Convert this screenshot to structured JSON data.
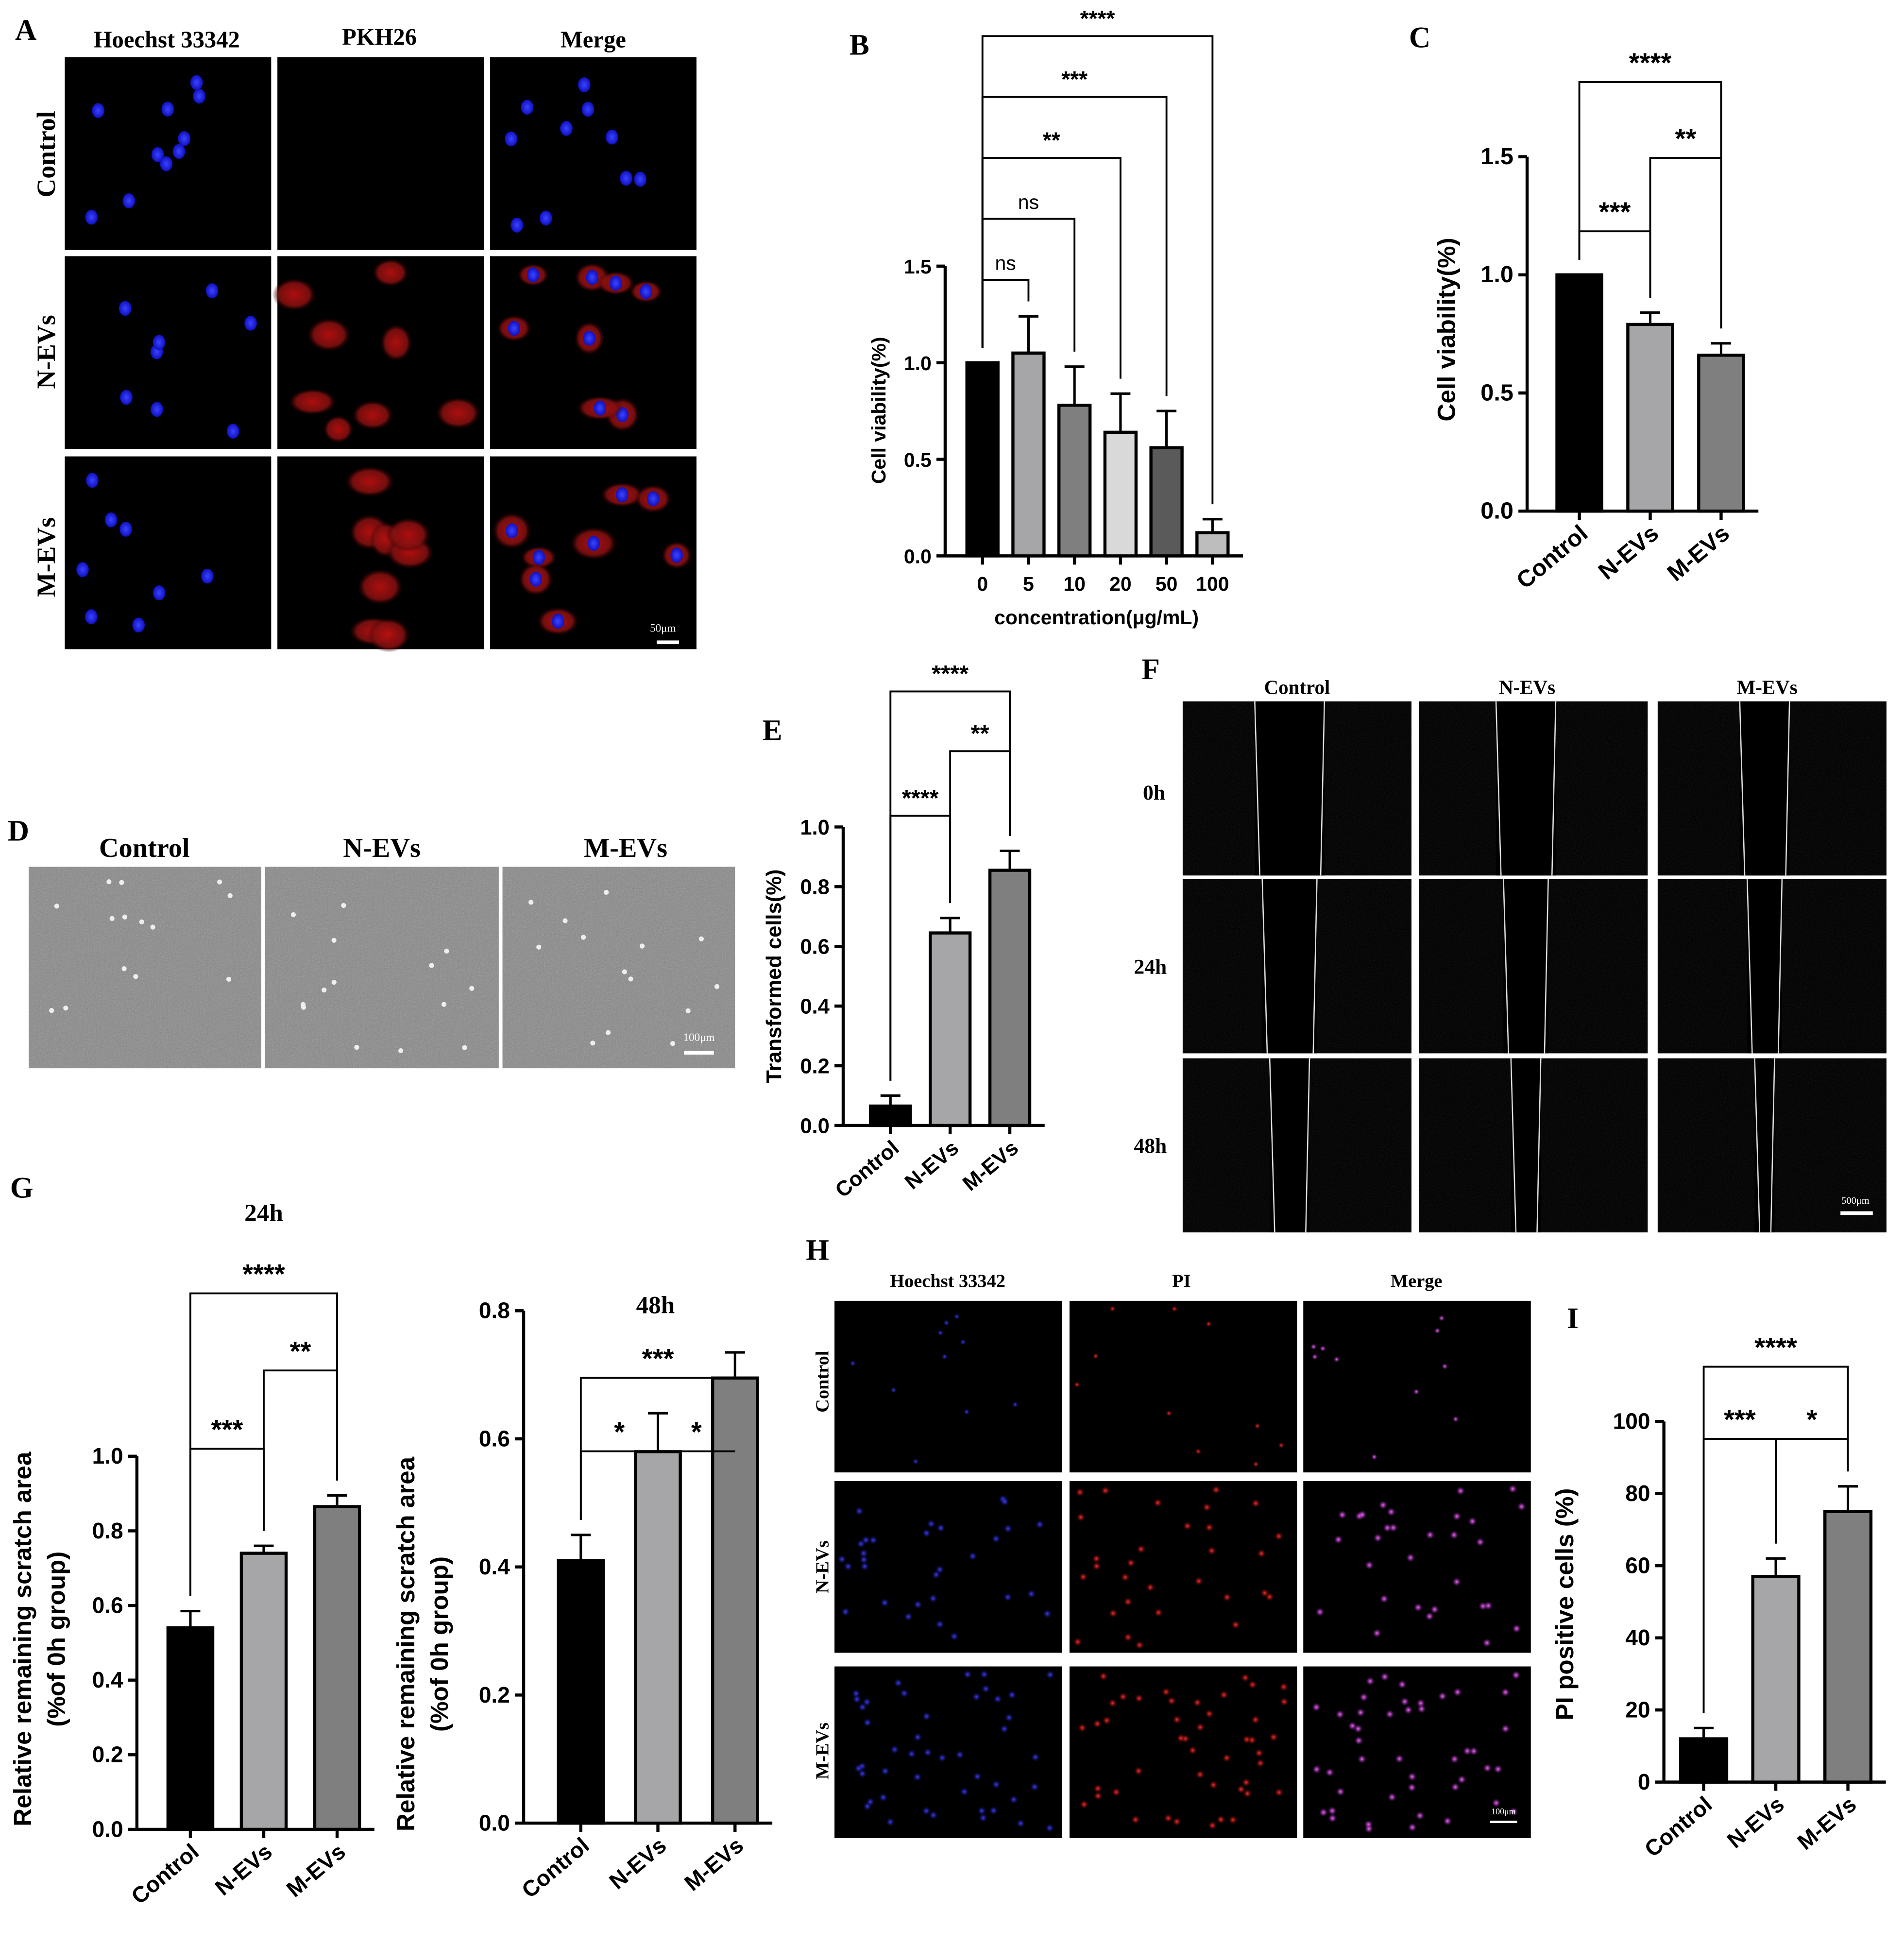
{
  "panels": {
    "a": {
      "letter": "A",
      "columns": [
        "Hoechst 33342",
        "PKH26",
        "Merge"
      ],
      "rows": [
        "Control",
        "N-EVs",
        "M-EVs"
      ],
      "scale": "50μm"
    },
    "b": {
      "letter": "B"
    },
    "c": {
      "letter": "C"
    },
    "d": {
      "letter": "D",
      "columns": [
        "Control",
        "N-EVs",
        "M-EVs"
      ],
      "scale": "100μm"
    },
    "e": {
      "letter": "E"
    },
    "f": {
      "letter": "F",
      "columns": [
        "Control",
        "N-EVs",
        "M-EVs"
      ],
      "rows": [
        "0h",
        "24h",
        "48h"
      ],
      "scale": "500μm"
    },
    "g": {
      "letter": "G",
      "title_24h": "24h",
      "title_48h": "48h"
    },
    "h": {
      "letter": "H",
      "columns": [
        "Hoechst 33342",
        "PI",
        "Merge"
      ],
      "rows": [
        "Control",
        "N-EVs",
        "M-EVs"
      ],
      "scale": "100μm"
    },
    "i": {
      "letter": "I"
    }
  },
  "colors": {
    "black": "#000000",
    "light_gray": "#a6a6a8",
    "mid_gray": "#7f7f7f",
    "dark_gray": "#5a5a5a",
    "very_light_gray": "#d9d9d9"
  },
  "chart_data": [
    {
      "id": "B",
      "type": "bar",
      "categories": [
        "0",
        "5",
        "10",
        "20",
        "50",
        "100"
      ],
      "values": [
        1.0,
        1.05,
        0.78,
        0.64,
        0.56,
        0.12
      ],
      "errors": [
        0.0,
        0.19,
        0.2,
        0.2,
        0.19,
        0.07
      ],
      "bar_colors": [
        "#000000",
        "#a6a6a8",
        "#7f7f7f",
        "#d9d9d9",
        "#5a5a5a",
        "#bdbdbd"
      ],
      "xlabel": "concentration(μg/mL)",
      "ylabel": "Cell viability(%)",
      "ylim": [
        0,
        1.5
      ],
      "yticks": [
        "0.0",
        "0.5",
        "1.0",
        "1.5"
      ],
      "significance": [
        {
          "from": 0,
          "to": 1,
          "label": "ns"
        },
        {
          "from": 0,
          "to": 2,
          "label": "ns"
        },
        {
          "from": 0,
          "to": 3,
          "label": "**"
        },
        {
          "from": 0,
          "to": 4,
          "label": "***"
        },
        {
          "from": 0,
          "to": 5,
          "label": "****"
        }
      ]
    },
    {
      "id": "C",
      "type": "bar",
      "categories": [
        "Control",
        "N-EVs",
        "M-EVs"
      ],
      "values": [
        1.0,
        0.79,
        0.66
      ],
      "errors": [
        0.0,
        0.05,
        0.05
      ],
      "bar_colors": [
        "#000000",
        "#a6a6a8",
        "#7f7f7f"
      ],
      "ylabel": "Cell viability(%)",
      "ylim": [
        0,
        1.5
      ],
      "yticks": [
        "0.0",
        "0.5",
        "1.0",
        "1.5"
      ],
      "significance": [
        {
          "from": 0,
          "to": 1,
          "label": "***"
        },
        {
          "from": 1,
          "to": 2,
          "label": "**"
        },
        {
          "from": 0,
          "to": 2,
          "label": "****"
        }
      ]
    },
    {
      "id": "E",
      "type": "bar",
      "categories": [
        "Control",
        "N-EVs",
        "M-EVs"
      ],
      "values": [
        0.065,
        0.645,
        0.855
      ],
      "errors": [
        0.035,
        0.05,
        0.065
      ],
      "bar_colors": [
        "#000000",
        "#a6a6a8",
        "#7f7f7f"
      ],
      "ylabel": "Transformed cells(%)",
      "ylim": [
        0,
        1.0
      ],
      "yticks": [
        "0.0",
        "0.2",
        "0.4",
        "0.6",
        "0.8",
        "1.0"
      ],
      "significance": [
        {
          "from": 0,
          "to": 1,
          "label": "****"
        },
        {
          "from": 1,
          "to": 2,
          "label": "**"
        },
        {
          "from": 0,
          "to": 2,
          "label": "****"
        }
      ]
    },
    {
      "id": "G-24h",
      "type": "bar",
      "title": "24h",
      "categories": [
        "Control",
        "N-EVs",
        "M-EVs"
      ],
      "values": [
        0.54,
        0.74,
        0.865
      ],
      "errors": [
        0.045,
        0.02,
        0.03
      ],
      "bar_colors": [
        "#000000",
        "#a6a6a8",
        "#7f7f7f"
      ],
      "ylabel": "Relative remaining scratch area\n(%of 0h group)",
      "ylim": [
        0,
        1.0
      ],
      "yticks": [
        "0.0",
        "0.2",
        "0.4",
        "0.6",
        "0.8",
        "1.0"
      ],
      "significance": [
        {
          "from": 0,
          "to": 1,
          "label": "***"
        },
        {
          "from": 1,
          "to": 2,
          "label": "**"
        },
        {
          "from": 0,
          "to": 2,
          "label": "****"
        }
      ]
    },
    {
      "id": "G-48h",
      "type": "bar",
      "title": "48h",
      "categories": [
        "Control",
        "N-EVs",
        "M-EVs"
      ],
      "values": [
        0.41,
        0.58,
        0.695
      ],
      "errors": [
        0.04,
        0.06,
        0.04
      ],
      "bar_colors": [
        "#000000",
        "#a6a6a8",
        "#7f7f7f"
      ],
      "ylabel": "Relative remaining scratch area\n(%of 0h group)",
      "ylim": [
        0,
        0.8
      ],
      "yticks": [
        "0.0",
        "0.2",
        "0.4",
        "0.6",
        "0.8"
      ],
      "significance": [
        {
          "from": 0,
          "to": 1,
          "label": "*"
        },
        {
          "from": 1,
          "to": 2,
          "label": "*"
        },
        {
          "from": 0,
          "to": 2,
          "label": "***"
        }
      ]
    },
    {
      "id": "I",
      "type": "bar",
      "categories": [
        "Control",
        "N-EVs",
        "M-EVs"
      ],
      "values": [
        12,
        57,
        75
      ],
      "errors": [
        3,
        5,
        7
      ],
      "bar_colors": [
        "#000000",
        "#a6a6a8",
        "#7f7f7f"
      ],
      "ylabel": "PI positive cells (%)",
      "ylim": [
        0,
        100
      ],
      "yticks": [
        "0",
        "20",
        "40",
        "60",
        "80",
        "100"
      ],
      "significance": [
        {
          "from": 0,
          "to": 1,
          "label": "***"
        },
        {
          "from": 1,
          "to": 2,
          "label": "*"
        },
        {
          "from": 0,
          "to": 2,
          "label": "****"
        }
      ]
    }
  ]
}
